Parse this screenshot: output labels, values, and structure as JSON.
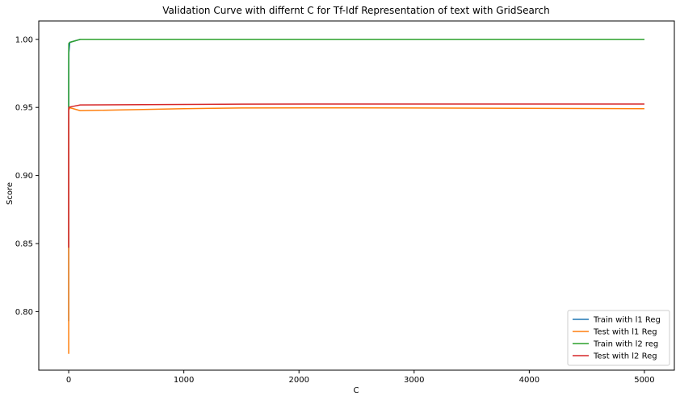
{
  "chart_data": {
    "type": "line",
    "title": "Validation Curve with differnt C for Tf-Idf Representation of text with GridSearch",
    "xlabel": "C",
    "ylabel": "Score",
    "xlim": [
      -260,
      5260
    ],
    "ylim": [
      0.757,
      1.0135
    ],
    "x_ticks": [
      0,
      1000,
      2000,
      3000,
      4000,
      5000
    ],
    "x_tick_labels": [
      "0",
      "1000",
      "2000",
      "3000",
      "4000",
      "5000"
    ],
    "y_ticks": [
      0.8,
      0.85,
      0.9,
      0.95,
      1.0
    ],
    "y_tick_labels": [
      "0.80",
      "0.85",
      "0.90",
      "0.95",
      "1.00"
    ],
    "grid": false,
    "legend_position": "bottom-right",
    "x": [
      0.0001,
      0.001,
      0.01,
      0.1,
      1,
      10,
      100,
      1000,
      1500,
      2500,
      5000
    ],
    "series": [
      {
        "name": "Train with l1 Reg",
        "color": "#1f77b4",
        "values": [
          0.793,
          0.85,
          0.95,
          0.97,
          0.99,
          0.9978,
          1.0,
          1.0,
          1.0,
          1.0,
          1.0
        ]
      },
      {
        "name": "Test with l1 Reg",
        "color": "#ff7f0e",
        "values": [
          0.769,
          0.79,
          0.85,
          0.935,
          0.948,
          0.9498,
          0.9476,
          0.9491,
          0.9496,
          0.9497,
          0.9491
        ]
      },
      {
        "name": "Train with l2 reg",
        "color": "#2ca02c",
        "values": [
          0.95,
          0.96,
          0.975,
          0.99,
          0.997,
          0.9978,
          1.0,
          1.0,
          1.0,
          1.0,
          1.0
        ]
      },
      {
        "name": "Test with l2 Reg",
        "color": "#d62728",
        "values": [
          0.847,
          0.9,
          0.945,
          0.949,
          0.95,
          0.9503,
          0.9518,
          0.9522,
          0.9524,
          0.9525,
          0.9525
        ]
      }
    ]
  }
}
